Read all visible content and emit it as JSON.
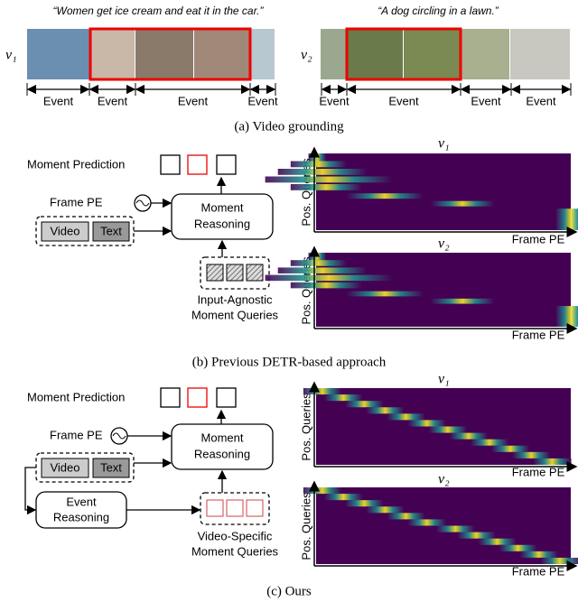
{
  "panel_a": {
    "quote_left": "“Women get ice cream and eat it in the car.”",
    "quote_right": "“A dog circling in a lawn.”",
    "video_left": "v₁",
    "video_right": "v₂",
    "events_left": [
      "Event",
      "Event",
      "Event",
      "Event"
    ],
    "events_right": [
      "Event",
      "Event",
      "Event",
      "Event"
    ],
    "caption": "(a) Video grounding"
  },
  "panel_b": {
    "moment_prediction": "Moment Prediction",
    "frame_pe": "Frame PE",
    "video": "Video",
    "text": "Text",
    "moment_reasoning": [
      "Moment",
      "Reasoning"
    ],
    "queries": [
      "Input-Agnostic",
      "Moment Queries"
    ],
    "heatmap_top": "v₁",
    "heatmap_bottom": "v₂",
    "y_axis": "Pos. Queries",
    "x_axis": "Frame PE",
    "caption": "(b) Previous DETR-based approach"
  },
  "panel_c": {
    "moment_prediction": "Moment Prediction",
    "frame_pe": "Frame PE",
    "video": "Video",
    "text": "Text",
    "moment_reasoning": [
      "Moment",
      "Reasoning"
    ],
    "event_reasoning": [
      "Event",
      "Reasoning"
    ],
    "queries": [
      "Video-Specific",
      "Moment Queries"
    ],
    "heatmap_top": "v₁",
    "heatmap_bottom": "v₂",
    "y_axis": "Pos. Queries",
    "x_axis": "Frame PE",
    "caption": "(c) Ours"
  }
}
